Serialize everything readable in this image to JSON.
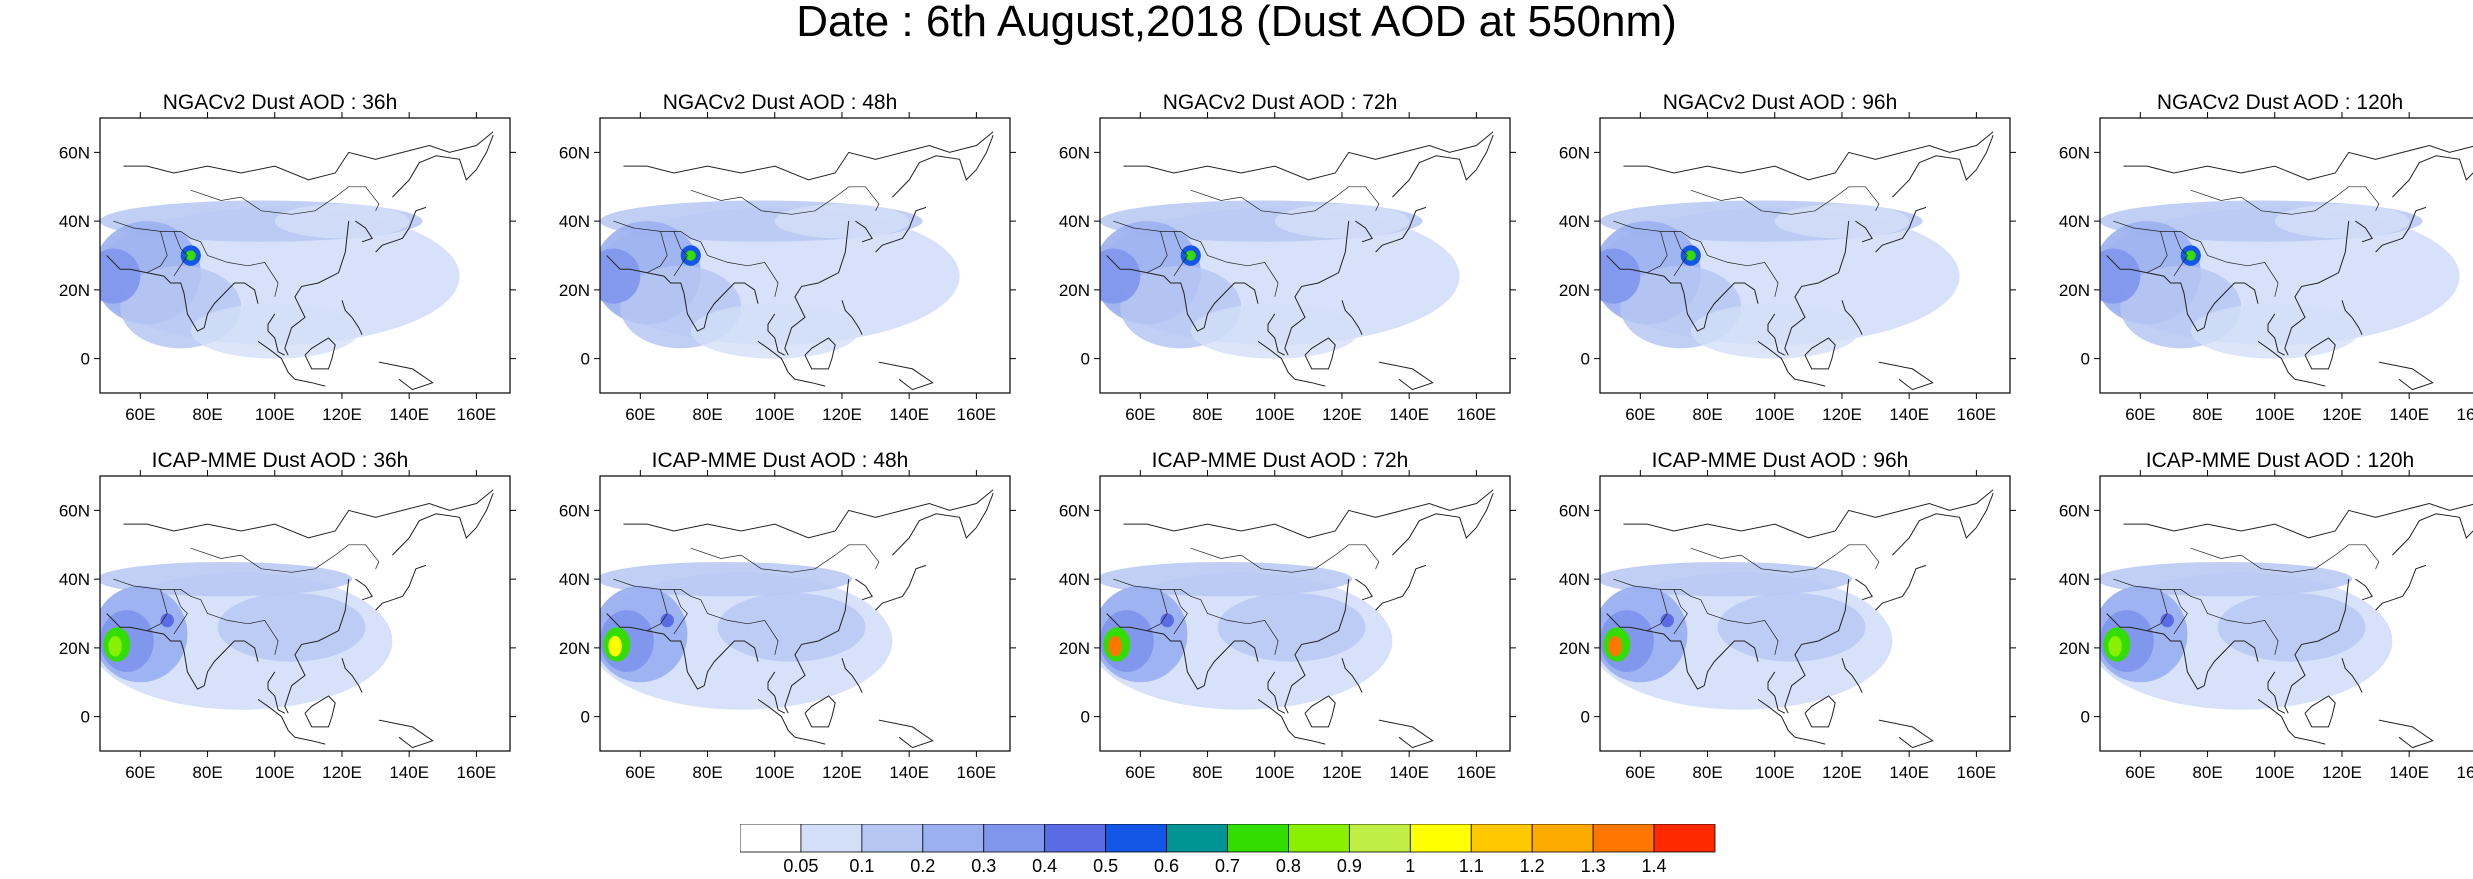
{
  "title": "Date : 6th August,2018 (Dust AOD at 550nm)",
  "map": {
    "lon_range": [
      48,
      170
    ],
    "lat_range": [
      -10,
      70
    ],
    "lon_ticks": [
      "60E",
      "80E",
      "100E",
      "120E",
      "140E",
      "160E"
    ],
    "lat_ticks": [
      "60N",
      "40N",
      "20N",
      "0"
    ]
  },
  "panels": [
    {
      "title": "NGACv2 Dust AOD : 36h",
      "model": "NGACv2",
      "lead": "36h",
      "peak": 0.75
    },
    {
      "title": "NGACv2 Dust AOD : 48h",
      "model": "NGACv2",
      "lead": "48h",
      "peak": 0.8
    },
    {
      "title": "NGACv2 Dust AOD : 72h",
      "model": "NGACv2",
      "lead": "72h",
      "peak": 0.8
    },
    {
      "title": "NGACv2 Dust AOD : 96h",
      "model": "NGACv2",
      "lead": "96h",
      "peak": 0.7
    },
    {
      "title": "NGACv2 Dust AOD : 120h",
      "model": "NGACv2",
      "lead": "120h",
      "peak": 0.7
    },
    {
      "title": "ICAP-MME Dust AOD : 36h",
      "model": "ICAP-MME",
      "lead": "36h",
      "peak": 0.85
    },
    {
      "title": "ICAP-MME Dust AOD : 48h",
      "model": "ICAP-MME",
      "lead": "48h",
      "peak": 1.0
    },
    {
      "title": "ICAP-MME Dust AOD : 72h",
      "model": "ICAP-MME",
      "lead": "72h",
      "peak": 1.4
    },
    {
      "title": "ICAP-MME Dust AOD : 96h",
      "model": "ICAP-MME",
      "lead": "96h",
      "peak": 1.4
    },
    {
      "title": "ICAP-MME Dust AOD : 120h",
      "model": "ICAP-MME",
      "lead": "120h",
      "peak": 0.9
    }
  ],
  "colorbar": {
    "labels": [
      "0.05",
      "0.1",
      "0.2",
      "0.3",
      "0.4",
      "0.5",
      "0.6",
      "0.7",
      "0.8",
      "0.9",
      "1",
      "1.1",
      "1.2",
      "1.3",
      "1.4"
    ],
    "colors": [
      "#ffffff",
      "#d3def8",
      "#b6c7f3",
      "#9bb0f0",
      "#7f96ec",
      "#5a6be3",
      "#1456e6",
      "#009494",
      "#33dd00",
      "#88f000",
      "#c0ee44",
      "#ffff00",
      "#ffc800",
      "#ffaa00",
      "#ff7700",
      "#ff2a00"
    ]
  }
}
